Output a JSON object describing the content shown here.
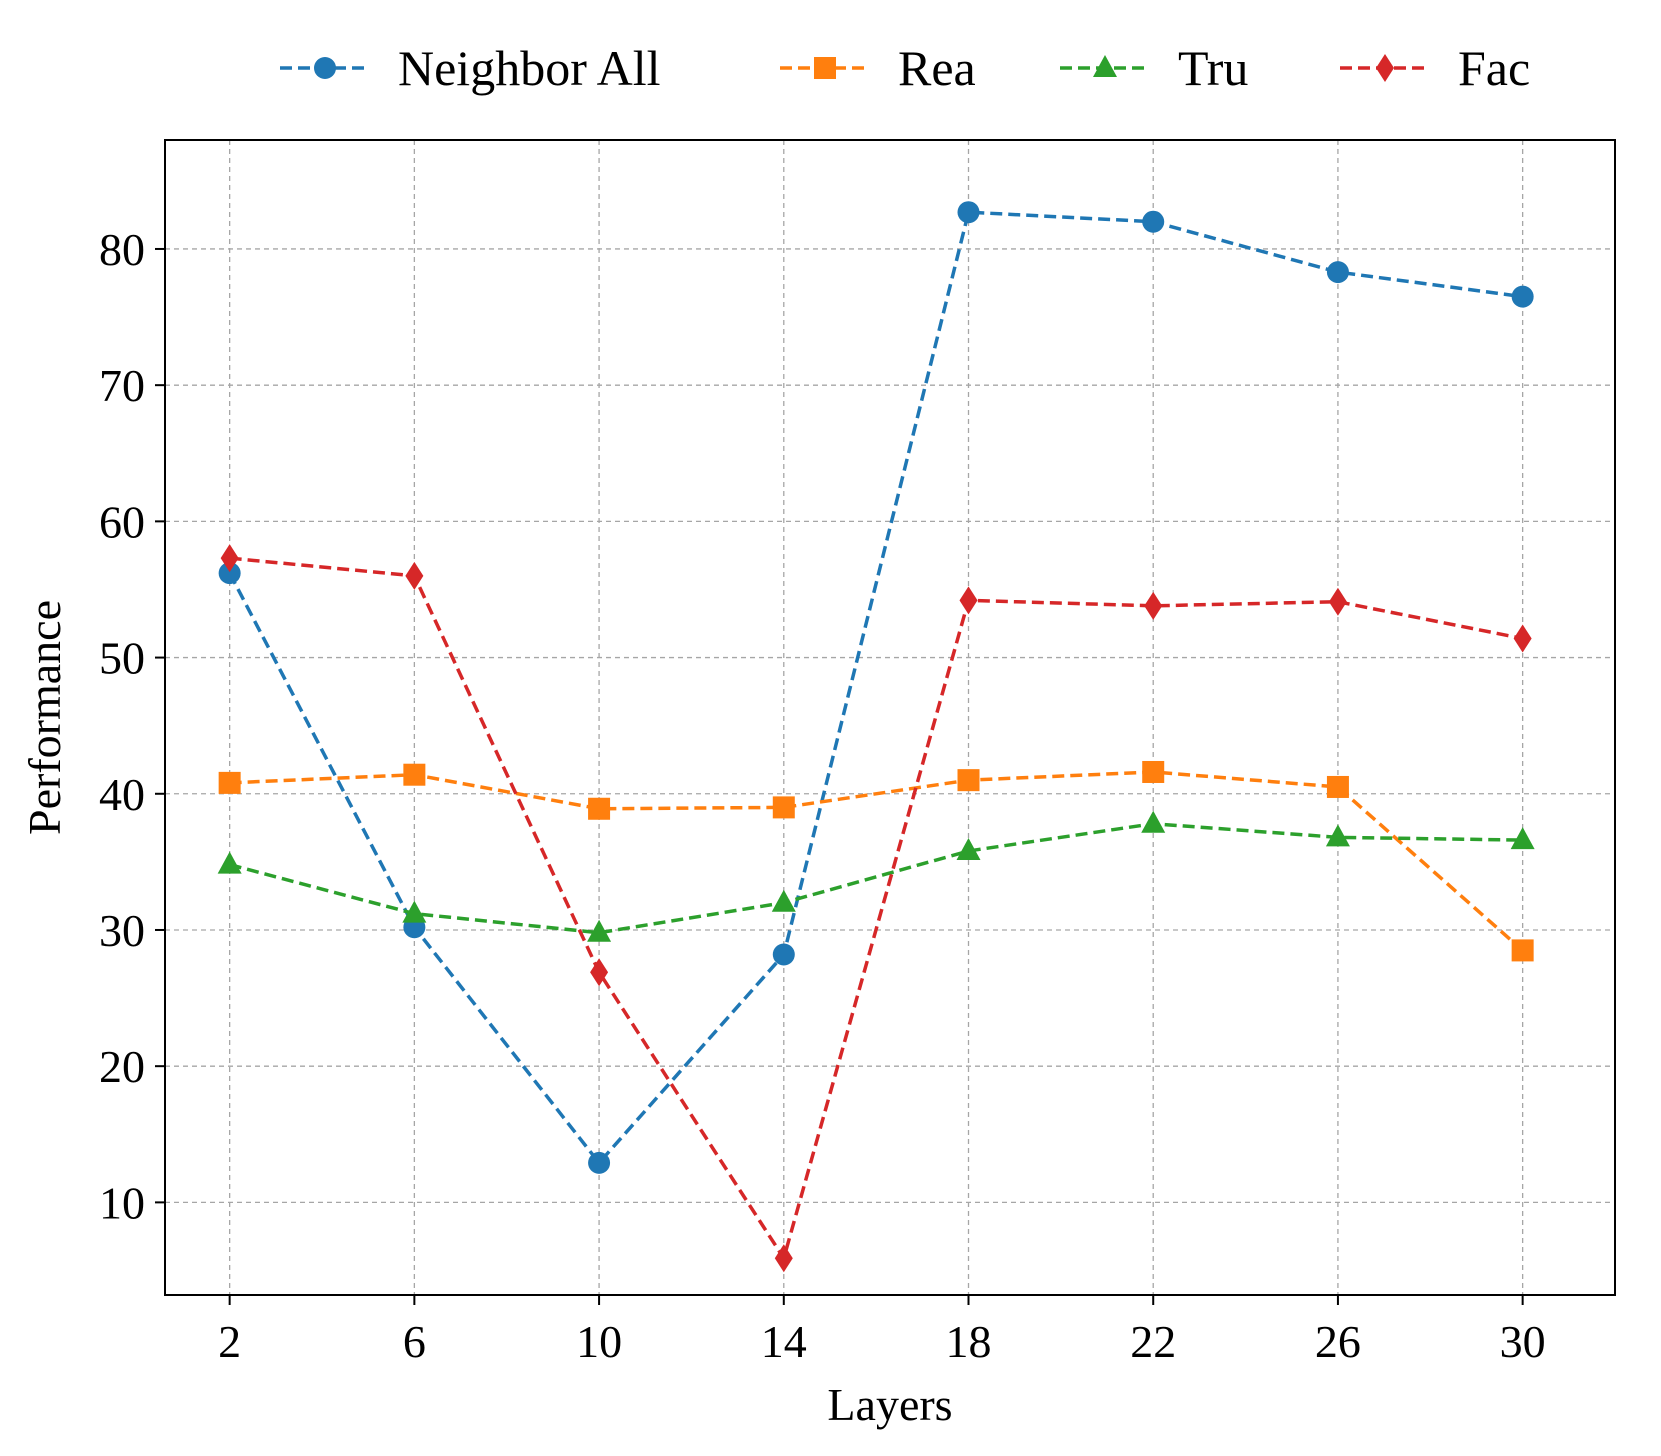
{
  "chart_data": {
    "type": "line",
    "title": "",
    "xlabel": "Layers",
    "ylabel": "Performance",
    "x": [
      2,
      6,
      10,
      14,
      18,
      22,
      26,
      30
    ],
    "xlim": [
      0.6,
      32.0
    ],
    "ylim": [
      3.2,
      88.0
    ],
    "x_ticks": [
      2,
      6,
      10,
      14,
      18,
      22,
      26,
      30
    ],
    "y_ticks": [
      10,
      20,
      30,
      40,
      50,
      60,
      70,
      80
    ],
    "grid": true,
    "line_style": "dashed",
    "legend_position": "top-center, above plot",
    "series": [
      {
        "name": "Neighbor All",
        "color": "#1f77b4",
        "marker": "circle",
        "values": [
          56.2,
          30.2,
          12.9,
          28.2,
          82.7,
          82.0,
          78.3,
          76.5
        ]
      },
      {
        "name": "Rea",
        "color": "#ff7f0e",
        "marker": "square",
        "values": [
          40.8,
          41.4,
          38.9,
          39.0,
          41.0,
          41.6,
          40.5,
          28.5
        ]
      },
      {
        "name": "Tru",
        "color": "#2ca02c",
        "marker": "triangle",
        "values": [
          34.8,
          31.2,
          29.8,
          32.0,
          35.8,
          37.8,
          36.8,
          36.6
        ]
      },
      {
        "name": "Fac",
        "color": "#d62728",
        "marker": "diamond",
        "values": [
          57.3,
          56.0,
          26.9,
          5.9,
          54.2,
          53.8,
          54.1,
          51.4
        ]
      }
    ]
  }
}
